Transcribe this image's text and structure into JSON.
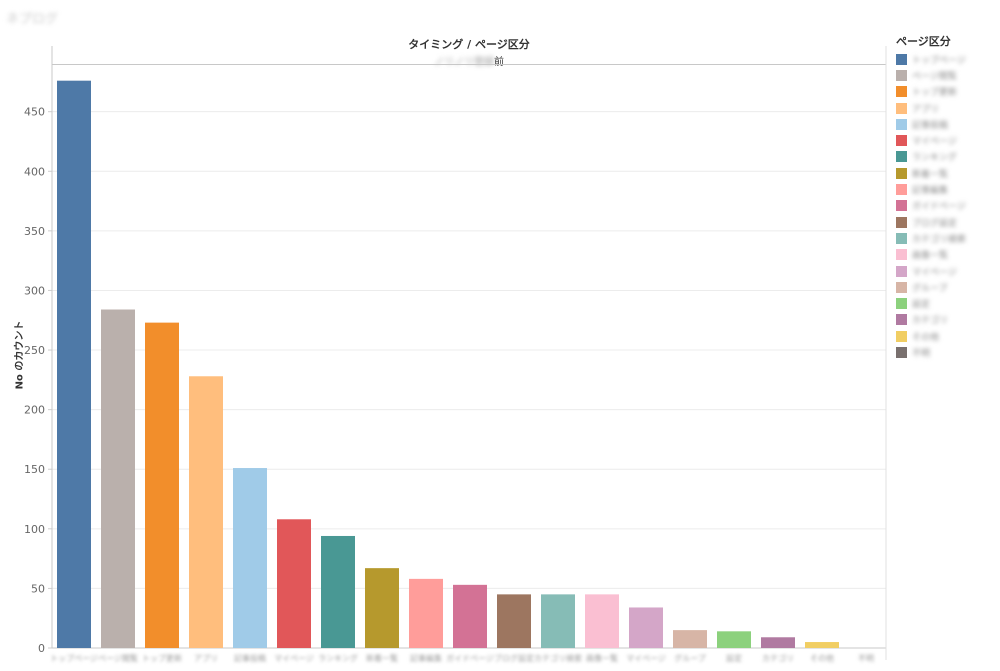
{
  "sheet": {
    "title": "ネプログ"
  },
  "header": {
    "title": "タイミング / ページ区分",
    "sub_prefix": "ノリノリ登録",
    "sub_suffix": "前"
  },
  "chart_data": {
    "type": "bar",
    "ylabel": "No のカウント",
    "ylim": [
      0,
      490
    ],
    "yticks": [
      0,
      50,
      100,
      150,
      200,
      250,
      300,
      350,
      400,
      450
    ],
    "grid": true,
    "legend_position": "right",
    "legend_title": "ページ区分",
    "categories": [
      "トップページ",
      "ページ閲覧",
      "トップ更新",
      "アプリ",
      "記事投稿",
      "マイページ",
      "ランキング",
      "新着一覧",
      "記事編集",
      "ガイドページ",
      "ブログ設定",
      "カテゴリ検索",
      "画像一覧",
      "マイページ",
      "グループ",
      "設定",
      "カテゴリ",
      "その他",
      "不明"
    ],
    "values": [
      476,
      284,
      273,
      228,
      151,
      108,
      94,
      67,
      58,
      53,
      45,
      45,
      45,
      34,
      15,
      14,
      9,
      5,
      0
    ],
    "colors": [
      "#4e79a7",
      "#bab0ac",
      "#f28e2b",
      "#ffbe7d",
      "#a0cbe8",
      "#e15759",
      "#499894",
      "#b6992d",
      "#ff9d9a",
      "#d37295",
      "#9d7660",
      "#86bcb6",
      "#fabfd2",
      "#d4a6c8",
      "#d7b5a6",
      "#8cd17d",
      "#b07aa1",
      "#f1ce63",
      "#79706e"
    ]
  }
}
